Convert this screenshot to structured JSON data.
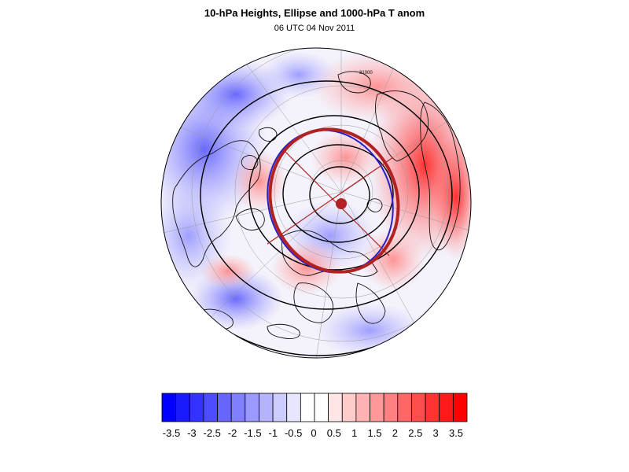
{
  "title": "10-hPa Heights, Ellipse and 1000-hPa T anom",
  "subtitle": "06 UTC 04 Nov 2011",
  "contour_label": "31000",
  "colorbar": {
    "ticks": [
      "-3.5",
      "-3",
      "-2.5",
      "-2",
      "-1.5",
      "-1",
      "-0.5",
      "0",
      "0.5",
      "1",
      "1.5",
      "2",
      "2.5",
      "3",
      "3.5"
    ],
    "colors": [
      "#0000ff",
      "#1a1aff",
      "#3333ff",
      "#4d4dff",
      "#6666ff",
      "#8080ff",
      "#9999ff",
      "#b3b3ff",
      "#ccccff",
      "#e6e6ff",
      "#ffffff",
      "#ffffff",
      "#ffe6e6",
      "#ffcccc",
      "#ffb3b3",
      "#ff9999",
      "#ff8080",
      "#ff6666",
      "#ff4d4d",
      "#ff3333",
      "#ff1a1a",
      "#ff0000"
    ]
  },
  "colors": {
    "cold": "#3333ff",
    "warm": "#ff3333",
    "ellipse": "#b22222",
    "ellipse_inner": "#2222cc"
  }
}
